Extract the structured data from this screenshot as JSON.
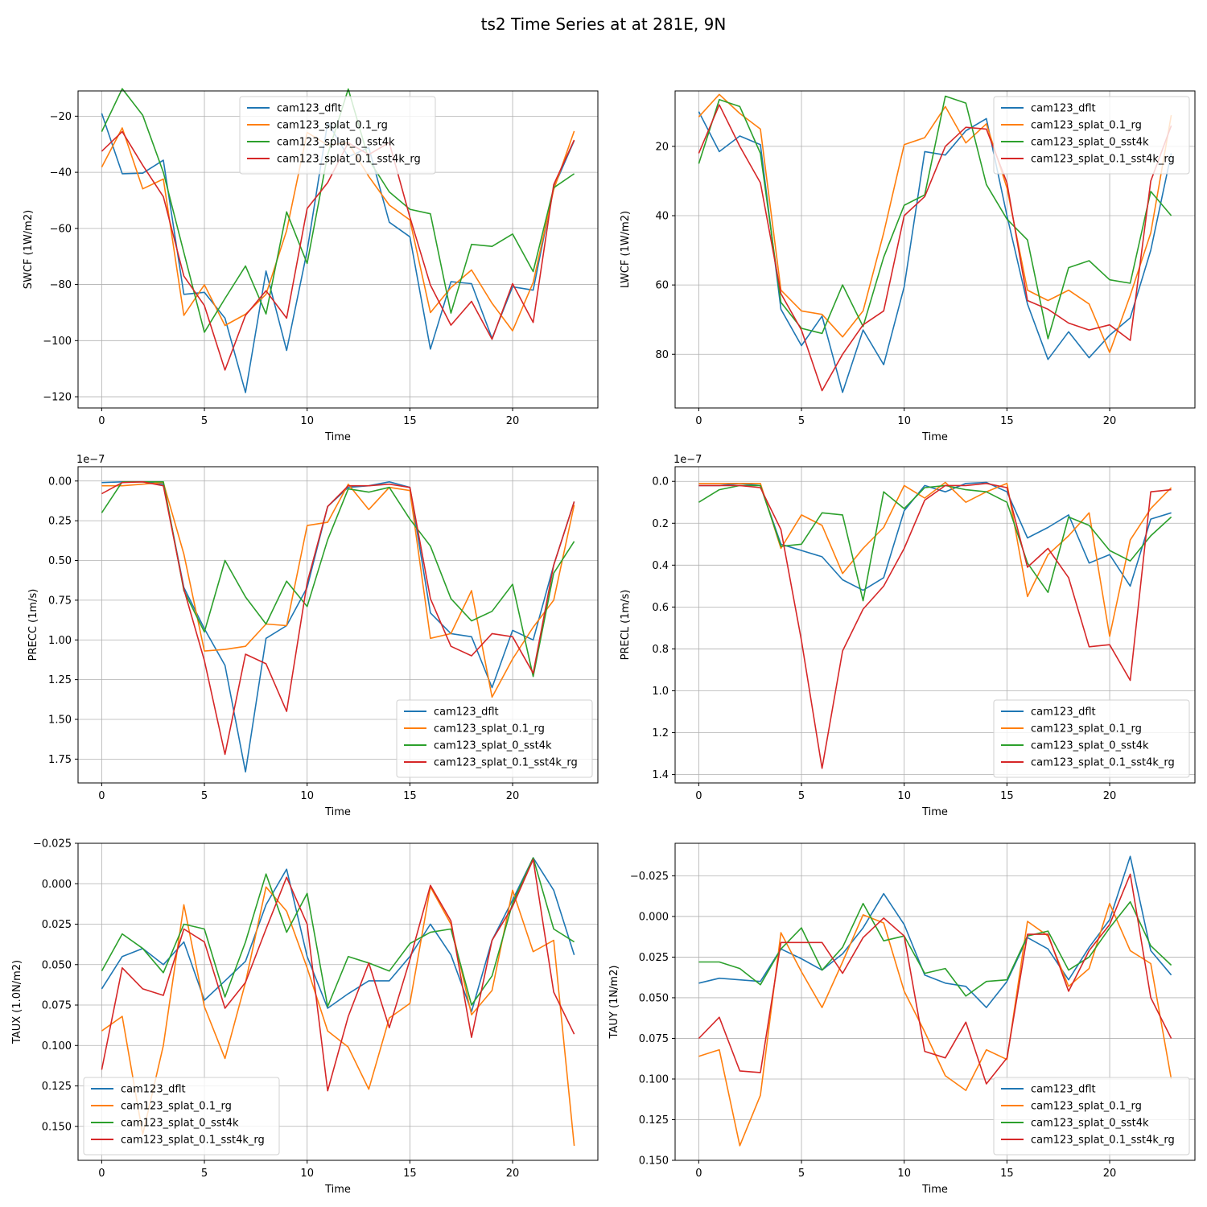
{
  "figure_title": "ts2 Time Series at at 281E, 9N",
  "colors": {
    "cam123_dflt": "#1f77b4",
    "cam123_splat_0.1_rg": "#ff7f0e",
    "cam123_splat_0_sst4k": "#2ca02c",
    "cam123_splat_0.1_sst4k_rg": "#d62728"
  },
  "chart_data": [
    {
      "type": "line",
      "title": "",
      "xlabel": "Time",
      "ylabel": "SWCF (1W/m2)",
      "inverted_y": true,
      "ylim": [
        -11,
        -124
      ],
      "yticks": [
        -120,
        -100,
        -80,
        -60,
        -40,
        -20
      ],
      "ytick_labels": [
        "−120",
        "−100",
        "−80",
        "−60",
        "−40",
        "−20"
      ],
      "xlim": [
        -1.15,
        24.15
      ],
      "xticks": [
        0,
        5,
        10,
        15,
        20
      ],
      "offset_label": "",
      "legend_position": "top-center",
      "x": [
        0,
        1,
        2,
        3,
        4,
        5,
        6,
        7,
        8,
        9,
        10,
        11,
        12,
        13,
        14,
        15,
        16,
        17,
        18,
        19,
        20,
        21,
        22,
        23
      ],
      "series": [
        {
          "name": "cam123_dflt",
          "values": [
            -19,
            -40.5,
            -40.3,
            -35.7,
            -83.5,
            -82.8,
            -92,
            -118.5,
            -75.2,
            -103.5,
            -68,
            -22.2,
            -34.5,
            -31.2,
            -57.8,
            -63,
            -103,
            -79,
            -79.7,
            -99.2,
            -80.8,
            -82,
            -45.5,
            -28.7
          ]
        },
        {
          "name": "cam123_splat_0.1_rg",
          "values": [
            -38.2,
            -24.2,
            -45.9,
            -42.4,
            -91,
            -80.1,
            -94.6,
            -90.6,
            -83.5,
            -60.8,
            -25.8,
            -30.3,
            -29.5,
            -41.5,
            -51.7,
            -57,
            -90,
            -81.1,
            -74.8,
            -86.7,
            -96.5,
            -79.3,
            -46.2,
            -25.3
          ]
        },
        {
          "name": "cam123_splat_0_sst4k",
          "values": [
            -25.5,
            -10.2,
            -19.7,
            -40,
            -68.6,
            -97,
            -85,
            -73.4,
            -90.5,
            -54.1,
            -72.5,
            -33.7,
            -10.3,
            -35.5,
            -47,
            -53.2,
            -54.8,
            -90.2,
            -65.7,
            -66.4,
            -62,
            -75.4,
            -45.5,
            -40.5
          ]
        },
        {
          "name": "cam123_splat_0.1_sst4k_rg",
          "values": [
            -32.5,
            -25.5,
            -37.5,
            -48.7,
            -77,
            -87.5,
            -110.5,
            -91,
            -82.2,
            -92,
            -52.9,
            -43.7,
            -29.5,
            -33.7,
            -29.4,
            -56,
            -80.2,
            -94.5,
            -86,
            -99.5,
            -79.7,
            -93.5,
            -44.4,
            -28.5
          ]
        }
      ]
    },
    {
      "type": "line",
      "title": "",
      "xlabel": "Time",
      "ylabel": "LWCF (1W/m2)",
      "inverted_y": true,
      "ylim": [
        4,
        95.5
      ],
      "yticks": [
        20,
        40,
        60,
        80
      ],
      "ytick_labels": [
        "20",
        "40",
        "60",
        "80"
      ],
      "xlim": [
        -1.15,
        24.15
      ],
      "xticks": [
        0,
        5,
        10,
        15,
        20
      ],
      "offset_label": "",
      "legend_position": "top-right",
      "x": [
        0,
        1,
        2,
        3,
        4,
        5,
        6,
        7,
        8,
        9,
        10,
        11,
        12,
        13,
        14,
        15,
        16,
        17,
        18,
        19,
        20,
        21,
        22,
        23
      ],
      "series": [
        {
          "name": "cam123_dflt",
          "values": [
            10,
            21.5,
            17,
            19.5,
            67,
            77.5,
            69,
            91,
            73,
            83,
            60.5,
            21.5,
            22.5,
            15.5,
            12,
            40,
            65.5,
            81.5,
            73.5,
            81,
            74.5,
            69.5,
            50,
            22
          ]
        },
        {
          "name": "cam123_splat_0.1_rg",
          "values": [
            11.5,
            5,
            10.5,
            15,
            61.5,
            67.5,
            68.5,
            75,
            67.5,
            45,
            19.5,
            17.5,
            8.5,
            19,
            13.5,
            32,
            61.5,
            64.5,
            61.5,
            65.5,
            79.5,
            63,
            45,
            11
          ]
        },
        {
          "name": "cam123_splat_0_sst4k",
          "values": [
            25,
            6.5,
            8.5,
            22,
            65,
            72.5,
            74,
            60,
            72,
            52,
            37,
            34,
            5.5,
            7.5,
            31,
            41,
            47,
            75.5,
            55,
            53,
            58.5,
            59.5,
            33,
            40
          ]
        },
        {
          "name": "cam123_splat_0.1_sst4k_rg",
          "values": [
            22,
            8,
            20,
            30.5,
            62.5,
            73,
            90.5,
            80,
            71.5,
            67.5,
            40,
            34.5,
            20,
            14.5,
            15,
            30.5,
            64.5,
            67,
            71,
            73,
            71.5,
            76,
            30,
            14
          ]
        }
      ]
    },
    {
      "type": "line",
      "title": "",
      "xlabel": "Time",
      "ylabel": "PRECC (1m/s)",
      "inverted_y": true,
      "ylim": [
        -0.09,
        1.9
      ],
      "yticks": [
        0,
        0.25,
        0.5,
        0.75,
        1,
        1.25,
        1.5,
        1.75
      ],
      "ytick_labels": [
        "0.00",
        "0.25",
        "0.50",
        "0.75",
        "1.00",
        "1.25",
        "1.50",
        "1.75"
      ],
      "xlim": [
        -1.15,
        24.15
      ],
      "xticks": [
        0,
        5,
        10,
        15,
        20
      ],
      "offset_label": "1e−7",
      "legend_position": "lower-right",
      "x": [
        0,
        1,
        2,
        3,
        4,
        5,
        6,
        7,
        8,
        9,
        10,
        11,
        12,
        13,
        14,
        15,
        16,
        17,
        18,
        19,
        20,
        21,
        22,
        23
      ],
      "series": [
        {
          "name": "cam123_dflt",
          "values": [
            0.01,
            0.005,
            0.005,
            0.02,
            0.67,
            0.93,
            1.16,
            1.83,
            0.99,
            0.91,
            0.67,
            0.16,
            0.04,
            0.03,
            0.005,
            0.04,
            0.83,
            0.96,
            0.98,
            1.3,
            0.94,
            1,
            0.53,
            0.13
          ]
        },
        {
          "name": "cam123_splat_0.1_rg",
          "values": [
            0.03,
            0.03,
            0.02,
            0.01,
            0.46,
            1.07,
            1.06,
            1.04,
            0.9,
            0.91,
            0.28,
            0.26,
            0.02,
            0.18,
            0.04,
            0.06,
            0.99,
            0.96,
            0.69,
            1.36,
            1.12,
            0.92,
            0.75,
            0.15
          ]
        },
        {
          "name": "cam123_splat_0_sst4k",
          "values": [
            0.2,
            0.005,
            0.005,
            0.005,
            0.69,
            0.95,
            0.5,
            0.73,
            0.9,
            0.63,
            0.79,
            0.37,
            0.05,
            0.07,
            0.04,
            0.24,
            0.41,
            0.74,
            0.88,
            0.82,
            0.65,
            1.23,
            0.58,
            0.38
          ]
        },
        {
          "name": "cam123_splat_0.1_sst4k_rg",
          "values": [
            0.08,
            0.01,
            0.005,
            0.03,
            0.68,
            1.13,
            1.72,
            1.09,
            1.15,
            1.45,
            0.64,
            0.16,
            0.03,
            0.03,
            0.02,
            0.04,
            0.74,
            1.04,
            1.1,
            0.96,
            0.98,
            1.21,
            0.53,
            0.13
          ]
        }
      ]
    },
    {
      "type": "line",
      "title": "",
      "xlabel": "Time",
      "ylabel": "PRECL (1m/s)",
      "inverted_y": true,
      "ylim": [
        -0.07,
        1.44
      ],
      "yticks": [
        0,
        0.2,
        0.4,
        0.6,
        0.8,
        1,
        1.2,
        1.4
      ],
      "ytick_labels": [
        "0.0",
        "0.2",
        "0.4",
        "0.6",
        "0.8",
        "1.0",
        "1.2",
        "1.4"
      ],
      "xlim": [
        -1.15,
        24.15
      ],
      "xticks": [
        0,
        5,
        10,
        15,
        20
      ],
      "offset_label": "1e−7",
      "legend_position": "lower-right",
      "x": [
        0,
        1,
        2,
        3,
        4,
        5,
        6,
        7,
        8,
        9,
        10,
        11,
        12,
        13,
        14,
        15,
        16,
        17,
        18,
        19,
        20,
        21,
        22,
        23
      ],
      "series": [
        {
          "name": "cam123_dflt",
          "values": [
            0.02,
            0.02,
            0.01,
            0.02,
            0.3,
            0.33,
            0.36,
            0.47,
            0.52,
            0.46,
            0.14,
            0.02,
            0.05,
            0.01,
            0.005,
            0.05,
            0.27,
            0.22,
            0.16,
            0.39,
            0.35,
            0.5,
            0.18,
            0.15
          ]
        },
        {
          "name": "cam123_splat_0.1_rg",
          "values": [
            0.01,
            0.01,
            0.01,
            0.01,
            0.32,
            0.16,
            0.21,
            0.44,
            0.32,
            0.22,
            0.02,
            0.08,
            0.005,
            0.1,
            0.05,
            0.01,
            0.55,
            0.35,
            0.26,
            0.15,
            0.74,
            0.28,
            0.13,
            0.03
          ]
        },
        {
          "name": "cam123_splat_0_sst4k",
          "values": [
            0.1,
            0.04,
            0.02,
            0.02,
            0.31,
            0.3,
            0.15,
            0.16,
            0.57,
            0.05,
            0.13,
            0.03,
            0.02,
            0.04,
            0.05,
            0.1,
            0.39,
            0.53,
            0.17,
            0.21,
            0.33,
            0.38,
            0.26,
            0.17
          ]
        },
        {
          "name": "cam123_splat_0.1_sst4k_rg",
          "values": [
            0.02,
            0.02,
            0.02,
            0.03,
            0.23,
            0.76,
            1.37,
            0.81,
            0.61,
            0.5,
            0.32,
            0.09,
            0.02,
            0.02,
            0.01,
            0.03,
            0.41,
            0.32,
            0.46,
            0.79,
            0.78,
            0.95,
            0.05,
            0.04
          ]
        }
      ]
    },
    {
      "type": "line",
      "title": "",
      "xlabel": "Time",
      "ylabel": "TAUX (1.0N/m2)",
      "inverted_y": true,
      "ylim": [
        -0.025,
        0.171
      ],
      "yticks": [
        -0.025,
        0,
        0.025,
        0.05,
        0.075,
        0.1,
        0.125,
        0.15
      ],
      "ytick_labels": [
        "−0.025",
        "0.000",
        "0.025",
        "0.050",
        "0.075",
        "0.100",
        "0.125",
        "0.150"
      ],
      "xlim": [
        -1.15,
        24.15
      ],
      "xticks": [
        0,
        5,
        10,
        15,
        20
      ],
      "offset_label": "",
      "legend_position": "lower-left",
      "x": [
        0,
        1,
        2,
        3,
        4,
        5,
        6,
        7,
        8,
        9,
        10,
        11,
        12,
        13,
        14,
        15,
        16,
        17,
        18,
        19,
        20,
        21,
        22,
        23
      ],
      "series": [
        {
          "name": "cam123_dflt",
          "values": [
            0.065,
            0.045,
            0.04,
            0.05,
            0.036,
            0.072,
            0.06,
            0.048,
            0.013,
            -0.009,
            0.045,
            0.077,
            0.068,
            0.06,
            0.06,
            0.045,
            0.025,
            0.044,
            0.079,
            0.035,
            0.01,
            -0.016,
            0.004,
            0.044
          ]
        },
        {
          "name": "cam123_splat_0.1_rg",
          "values": [
            0.091,
            0.082,
            0.155,
            0.1,
            0.013,
            0.076,
            0.108,
            0.061,
            0.002,
            0.017,
            0.052,
            0.091,
            0.101,
            0.127,
            0.083,
            0.074,
            0.002,
            0.025,
            0.081,
            0.066,
            0.004,
            0.042,
            0.035,
            0.162
          ]
        },
        {
          "name": "cam123_splat_0_sst4k",
          "values": [
            0.054,
            0.031,
            0.04,
            0.055,
            0.025,
            0.028,
            0.07,
            0.036,
            -0.006,
            0.03,
            0.006,
            0.076,
            0.045,
            0.049,
            0.054,
            0.037,
            0.03,
            0.028,
            0.075,
            0.057,
            0.012,
            -0.016,
            0.028,
            0.036
          ]
        },
        {
          "name": "cam123_splat_0.1_sst4k_rg",
          "values": [
            0.115,
            0.052,
            0.065,
            0.069,
            0.028,
            0.036,
            0.077,
            0.061,
            0.028,
            -0.004,
            0.025,
            0.128,
            0.082,
            0.049,
            0.089,
            0.047,
            0.001,
            0.023,
            0.095,
            0.035,
            0.014,
            -0.015,
            0.067,
            0.093
          ]
        }
      ]
    },
    {
      "type": "line",
      "title": "",
      "xlabel": "Time",
      "ylabel": "TAUY (1N/m2)",
      "inverted_y": true,
      "ylim": [
        -0.045,
        0.15
      ],
      "yticks": [
        -0.025,
        0,
        0.025,
        0.05,
        0.075,
        0.1,
        0.125,
        0.15
      ],
      "ytick_labels": [
        "−0.025",
        "0.000",
        "0.025",
        "0.050",
        "0.075",
        "0.100",
        "0.125",
        "0.150"
      ],
      "xlim": [
        -1.15,
        24.15
      ],
      "xticks": [
        0,
        5,
        10,
        15,
        20
      ],
      "offset_label": "",
      "legend_position": "lower-right",
      "x": [
        0,
        1,
        2,
        3,
        4,
        5,
        6,
        7,
        8,
        9,
        10,
        11,
        12,
        13,
        14,
        15,
        16,
        17,
        18,
        19,
        20,
        21,
        22,
        23
      ],
      "series": [
        {
          "name": "cam123_dflt",
          "values": [
            0.041,
            0.038,
            0.039,
            0.04,
            0.02,
            0.026,
            0.033,
            0.023,
            0.007,
            -0.014,
            0.005,
            0.036,
            0.041,
            0.043,
            0.056,
            0.04,
            0.013,
            0.02,
            0.039,
            0.019,
            0.002,
            -0.037,
            0.021,
            0.036
          ]
        },
        {
          "name": "cam123_splat_0.1_rg",
          "values": [
            0.086,
            0.082,
            0.141,
            0.11,
            0.01,
            0.034,
            0.056,
            0.028,
            -0.001,
            0.004,
            0.046,
            0.071,
            0.098,
            0.107,
            0.082,
            0.088,
            0.003,
            0.012,
            0.043,
            0.032,
            -0.008,
            0.021,
            0.029,
            0.1
          ]
        },
        {
          "name": "cam123_splat_0_sst4k",
          "values": [
            0.028,
            0.028,
            0.032,
            0.042,
            0.02,
            0.007,
            0.033,
            0.019,
            -0.008,
            0.015,
            0.012,
            0.035,
            0.032,
            0.049,
            0.04,
            0.039,
            0.012,
            0.009,
            0.033,
            0.025,
            0.007,
            -0.009,
            0.018,
            0.03
          ]
        },
        {
          "name": "cam123_splat_0.1_sst4k_rg",
          "values": [
            0.075,
            0.062,
            0.095,
            0.096,
            0.016,
            0.016,
            0.016,
            0.035,
            0.013,
            0.001,
            0.012,
            0.083,
            0.087,
            0.065,
            0.103,
            0.087,
            0.011,
            0.011,
            0.046,
            0.021,
            0.005,
            -0.026,
            0.05,
            0.075
          ]
        }
      ]
    }
  ]
}
